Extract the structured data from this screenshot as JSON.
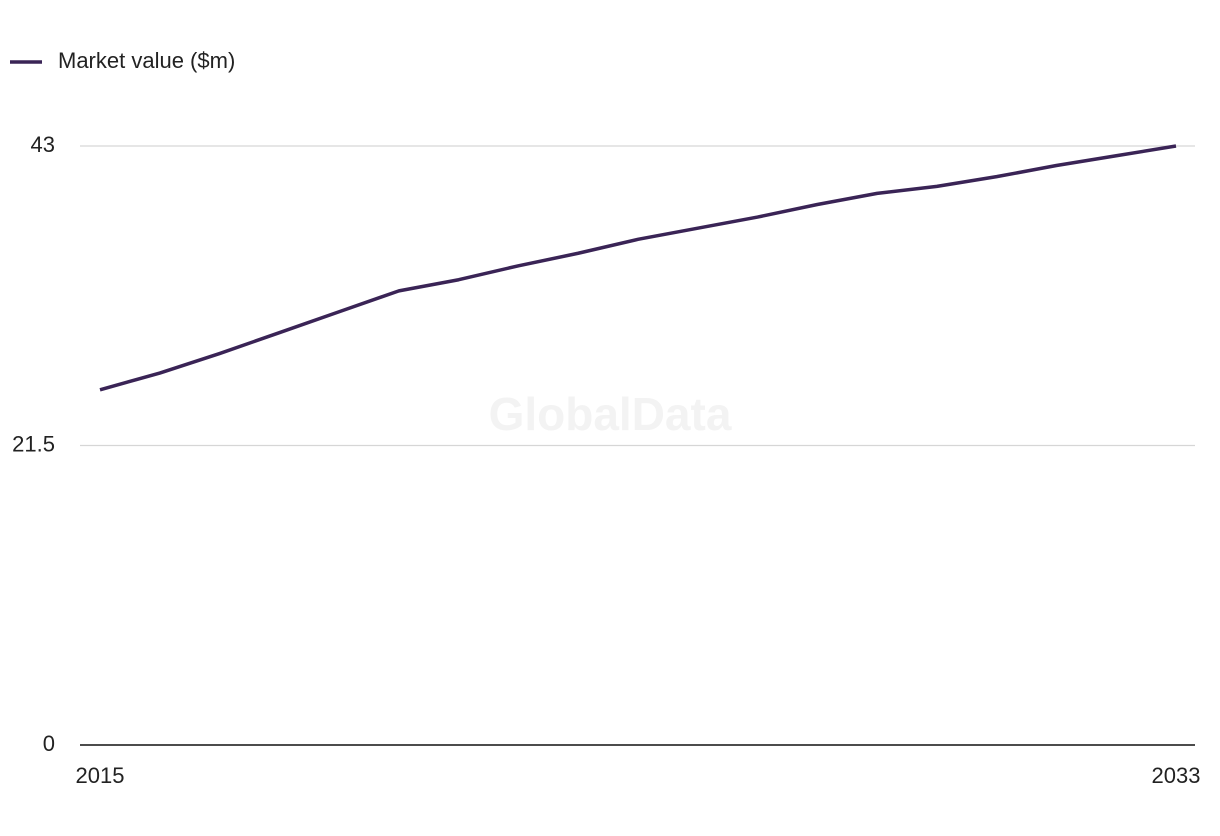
{
  "chart_data": {
    "type": "line",
    "watermark": "GlobalData",
    "x": [
      2015,
      2016,
      2017,
      2018,
      2019,
      2020,
      2021,
      2022,
      2023,
      2024,
      2025,
      2026,
      2027,
      2028,
      2029,
      2030,
      2031,
      2032,
      2033
    ],
    "series": [
      {
        "name": "Market value ($m)",
        "color": "#3a2456",
        "values": [
          25.5,
          26.7,
          28.1,
          29.6,
          31.1,
          32.6,
          33.4,
          34.4,
          35.3,
          36.3,
          37.1,
          37.9,
          38.8,
          39.6,
          40.1,
          40.8,
          41.6,
          42.3,
          43.0
        ]
      }
    ],
    "xlim": [
      2015,
      2033
    ],
    "xticks": [
      2015,
      2033
    ],
    "ylim": [
      0,
      43
    ],
    "yticks": [
      0,
      21.5,
      43
    ],
    "grid": true,
    "legend": "top-left"
  }
}
